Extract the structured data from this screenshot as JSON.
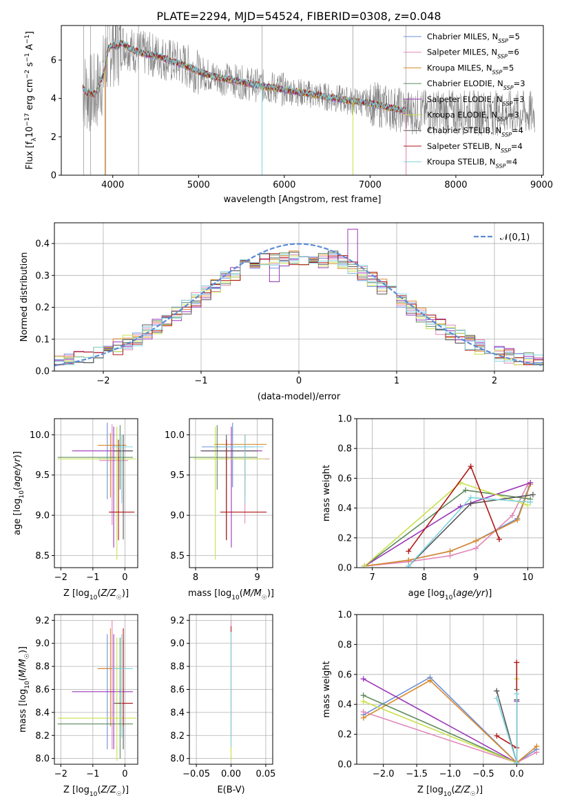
{
  "figure_title": "PLATE=2294, MJD=54524, FIBERID=0308, z=0.048",
  "models": [
    {
      "name": "Chabrier MILES",
      "nssp": "5",
      "color": "#6a8fd8"
    },
    {
      "name": "Salpeter MILES",
      "nssp": "6",
      "color": "#e087b8"
    },
    {
      "name": "Kroupa MILES",
      "nssp": "5",
      "color": "#d8892a"
    },
    {
      "name": "Chabrier ELODIE",
      "nssp": "3",
      "color": "#5c8a5c"
    },
    {
      "name": "Salpeter ELODIE",
      "nssp": "3",
      "color": "#9b35b8"
    },
    {
      "name": "Kroupa ELODIE",
      "nssp": "3",
      "color": "#c8e04a"
    },
    {
      "name": "Chabrier STELIB",
      "nssp": "4",
      "color": "#555555"
    },
    {
      "name": "Salpeter STELIB",
      "nssp": "4",
      "color": "#b01515"
    },
    {
      "name": "Kroupa STELIB",
      "nssp": "4",
      "color": "#7fd3e0"
    }
  ],
  "chart_data": [
    {
      "id": "spectrum",
      "type": "line",
      "xlabel": "wavelength [Angstrom, rest frame]",
      "ylabel": "Flux [f_λ 10^-17 erg cm^-2 s^-1 A^-1]",
      "xlim": [
        3400,
        9020
      ],
      "ylim": [
        0,
        7.8
      ],
      "xticks": [
        4000,
        5000,
        6000,
        7000,
        8000,
        9000
      ],
      "yticks": [
        0,
        2,
        4,
        6
      ],
      "legend": "top-right",
      "model_curve": {
        "x": [
          3650,
          3700,
          3800,
          3900,
          3950,
          4000,
          4050,
          4100,
          4200,
          4300,
          4400,
          4500,
          4600,
          4700,
          4800,
          4900,
          5000,
          5200,
          5400,
          5600,
          5800,
          6000,
          6200,
          6400,
          6600,
          6800,
          7000,
          7200,
          7400
        ],
        "y": [
          4.5,
          4.3,
          4.2,
          5.4,
          6.6,
          6.8,
          6.7,
          6.9,
          6.6,
          6.4,
          6.3,
          6.25,
          6.1,
          5.9,
          5.8,
          5.6,
          5.4,
          5.1,
          4.95,
          4.75,
          4.6,
          4.45,
          4.3,
          4.15,
          4.0,
          3.85,
          3.75,
          3.55,
          3.35
        ]
      }
    },
    {
      "id": "residuals",
      "type": "bar",
      "xlabel": "(data-model)/error",
      "ylabel": "Normed distribution",
      "xlim": [
        -2.5,
        2.5
      ],
      "ylim": [
        0,
        0.465
      ],
      "xticks": [
        -2,
        -1,
        0,
        1,
        2
      ],
      "yticks": [
        0.0,
        0.1,
        0.2,
        0.3,
        0.4
      ],
      "legend": "top-right",
      "gaussian_label": "𝒩(0,1)",
      "bin_width": 0.1
    },
    {
      "id": "age_vs_Z",
      "type": "scatter",
      "xlabel": "Z [log10(Z/Z☉)]",
      "ylabel": "age [log10(age/yr)]",
      "xlim": [
        -2.2,
        0.4
      ],
      "ylim": [
        8.35,
        10.2
      ],
      "xticks": [
        -2,
        -1,
        0
      ],
      "yticks": [
        8.5,
        9.0,
        9.5,
        10.0
      ],
      "points": [
        {
          "m": 0,
          "x": -0.55,
          "xerr": [
            0.3,
            0.3
          ],
          "y": 9.7,
          "yerr": [
            0.5,
            0.45
          ]
        },
        {
          "m": 1,
          "x": -0.4,
          "xerr": [
            0.4,
            0.5
          ],
          "y": 9.68,
          "yerr": [
            0.8,
            0.45
          ]
        },
        {
          "m": 2,
          "x": -0.45,
          "xerr": [
            0.4,
            0.5
          ],
          "y": 9.87,
          "yerr": [
            0.65,
            0.15
          ]
        },
        {
          "m": 3,
          "x": -0.15,
          "xerr": [
            1.95,
            0.4
          ],
          "y": 9.72,
          "yerr": [
            0.4,
            0.4
          ]
        },
        {
          "m": 4,
          "x": -0.35,
          "xerr": [
            1.3,
            0.6
          ],
          "y": 9.8,
          "yerr": [
            1.2,
            0.3
          ]
        },
        {
          "m": 5,
          "x": -0.25,
          "xerr": [
            1.85,
            0.6
          ],
          "y": 9.7,
          "yerr": [
            1.25,
            0.4
          ]
        },
        {
          "m": 6,
          "x": -0.05,
          "xerr": [
            0.3,
            0.3
          ],
          "y": 9.8,
          "yerr": [
            1.1,
            0.2
          ]
        },
        {
          "m": 7,
          "x": -0.2,
          "xerr": [
            0.3,
            0.5
          ],
          "y": 9.04,
          "yerr": [
            0.35,
            0.9
          ]
        },
        {
          "m": 8,
          "x": -0.1,
          "xerr": [
            0.3,
            0.35
          ],
          "y": 9.85,
          "yerr": [
            0.7,
            0.15
          ]
        }
      ]
    },
    {
      "id": "age_vs_mass",
      "type": "scatter",
      "xlabel": "mass [log10(M/M☉)]",
      "ylabel": "",
      "xlim": [
        7.9,
        9.25
      ],
      "ylim": [
        8.35,
        10.2
      ],
      "xticks": [
        8,
        9
      ],
      "yticks": [
        8.5,
        9.0,
        9.5,
        10.0
      ],
      "points": [
        {
          "m": 0,
          "x": 8.6,
          "xerr": [
            0.5,
            0.35
          ],
          "y": 9.85,
          "yerr": [
            0.5,
            0.3
          ]
        },
        {
          "m": 1,
          "x": 8.8,
          "xerr": [
            0.5,
            0.4
          ],
          "y": 9.7,
          "yerr": [
            0.8,
            0.3
          ]
        },
        {
          "m": 2,
          "x": 8.8,
          "xerr": [
            0.5,
            0.35
          ],
          "y": 9.88,
          "yerr": [
            0.65,
            0.12
          ]
        },
        {
          "m": 3,
          "x": 8.35,
          "xerr": [
            0.5,
            0.65
          ],
          "y": 9.72,
          "yerr": [
            0.4,
            0.4
          ]
        },
        {
          "m": 4,
          "x": 8.58,
          "xerr": [
            0.5,
            0.5
          ],
          "y": 9.8,
          "yerr": [
            1.2,
            0.3
          ]
        },
        {
          "m": 5,
          "x": 8.32,
          "xerr": [
            0.35,
            0.8
          ],
          "y": 9.7,
          "yerr": [
            1.25,
            0.4
          ]
        },
        {
          "m": 6,
          "x": 8.5,
          "xerr": [
            0.4,
            0.5
          ],
          "y": 9.8,
          "yerr": [
            1.1,
            0.2
          ]
        },
        {
          "m": 7,
          "x": 8.5,
          "xerr": [
            0.1,
            0.65
          ],
          "y": 9.04,
          "yerr": [
            0.35,
            0.9
          ]
        },
        {
          "m": 8,
          "x": 8.8,
          "xerr": [
            0.4,
            0.3
          ],
          "y": 9.85,
          "yerr": [
            0.7,
            0.15
          ]
        }
      ]
    },
    {
      "id": "weight_vs_age",
      "type": "line",
      "xlabel": "age [log10(age/yr)]",
      "ylabel": "mass weight",
      "xlim": [
        6.7,
        10.3
      ],
      "ylim": [
        0,
        1.0
      ],
      "xticks": [
        7,
        8,
        9,
        10
      ],
      "yticks": [
        0.0,
        0.2,
        0.4,
        0.6,
        0.8,
        1.0
      ],
      "series": [
        {
          "m": 0,
          "x": [
            6.85,
            7.7,
            8.5,
            9.0,
            9.8,
            10.05
          ],
          "y": [
            0.01,
            0.05,
            0.11,
            0.18,
            0.33,
            0.57
          ]
        },
        {
          "m": 1,
          "x": [
            6.85,
            7.7,
            8.5,
            9.0,
            9.7,
            10.0
          ],
          "y": [
            0.01,
            0.04,
            0.08,
            0.13,
            0.35,
            0.56
          ]
        },
        {
          "m": 2,
          "x": [
            6.85,
            7.7,
            8.5,
            9.0,
            9.8,
            10.05
          ],
          "y": [
            0.01,
            0.05,
            0.11,
            0.18,
            0.32,
            0.56
          ]
        },
        {
          "m": 3,
          "x": [
            6.85,
            8.8,
            10.05
          ],
          "y": [
            0.01,
            0.52,
            0.46
          ]
        },
        {
          "m": 4,
          "x": [
            6.85,
            8.7,
            10.05
          ],
          "y": [
            0.01,
            0.41,
            0.57
          ]
        },
        {
          "m": 5,
          "x": [
            6.85,
            8.7,
            10.0
          ],
          "y": [
            0.01,
            0.57,
            0.42
          ]
        },
        {
          "m": 6,
          "x": [
            7.7,
            8.9,
            10.1
          ],
          "y": [
            0.01,
            0.43,
            0.49
          ]
        },
        {
          "m": 7,
          "x": [
            7.7,
            8.9,
            9.45
          ],
          "y": [
            0.11,
            0.68,
            0.19
          ]
        },
        {
          "m": 8,
          "x": [
            7.7,
            8.9,
            10.05
          ],
          "y": [
            0.01,
            0.47,
            0.44
          ]
        }
      ]
    },
    {
      "id": "mass_vs_Z",
      "type": "scatter",
      "xlabel": "Z [log10(Z/Z☉)]",
      "ylabel": "mass [log10(M/M☉)]",
      "xlim": [
        -2.2,
        0.4
      ],
      "ylim": [
        7.95,
        9.25
      ],
      "xticks": [
        -2,
        -1,
        0
      ],
      "yticks": [
        8.0,
        8.2,
        8.4,
        8.6,
        8.8,
        9.0,
        9.2
      ],
      "points": [
        {
          "m": 0,
          "x": -0.55,
          "xerr": [
            0.3,
            0.3
          ],
          "y": 8.78,
          "yerr": [
            0.7,
            0.3
          ]
        },
        {
          "m": 1,
          "x": -0.4,
          "xerr": [
            0.4,
            0.5
          ],
          "y": 8.78,
          "yerr": [
            0.7,
            0.42
          ]
        },
        {
          "m": 2,
          "x": -0.45,
          "xerr": [
            0.4,
            0.5
          ],
          "y": 8.78,
          "yerr": [
            0.5,
            0.35
          ]
        },
        {
          "m": 3,
          "x": -0.15,
          "xerr": [
            1.95,
            0.4
          ],
          "y": 8.3,
          "yerr": [
            0.3,
            0.75
          ]
        },
        {
          "m": 4,
          "x": -0.35,
          "xerr": [
            1.3,
            0.6
          ],
          "y": 8.58,
          "yerr": [
            0.5,
            0.5
          ]
        },
        {
          "m": 5,
          "x": -0.25,
          "xerr": [
            1.85,
            0.6
          ],
          "y": 8.35,
          "yerr": [
            0.37,
            0.7
          ]
        },
        {
          "m": 6,
          "x": -0.05,
          "xerr": [
            0.3,
            0.3
          ],
          "y": 8.48,
          "yerr": [
            0.4,
            0.55
          ]
        },
        {
          "m": 7,
          "x": -0.05,
          "xerr": [
            0.15,
            0.3
          ],
          "y": 8.48,
          "yerr": [
            0.2,
            0.65
          ]
        },
        {
          "m": 8,
          "x": -0.1,
          "xerr": [
            0.3,
            0.35
          ],
          "y": 8.78,
          "yerr": [
            0.6,
            0.3
          ]
        }
      ]
    },
    {
      "id": "mass_vs_ebv",
      "type": "scatter",
      "xlabel": "E(B-V)",
      "ylabel": "",
      "xlim": [
        -0.06,
        0.06
      ],
      "ylim": [
        7.95,
        9.25
      ],
      "xticks": [
        -0.05,
        0.0,
        0.05
      ],
      "yticks": [
        8.0,
        8.2,
        8.4,
        8.6,
        8.8,
        9.0,
        9.2
      ],
      "points": [
        {
          "m": 1,
          "x": 0.0,
          "y": 8.6,
          "yerr": [
            0.6,
            0.6
          ]
        },
        {
          "m": 5,
          "x": 0.0,
          "y": 8.4,
          "yerr": [
            0.42,
            0.6
          ]
        },
        {
          "m": 7,
          "x": 0.0,
          "y": 8.6,
          "yerr": [
            0.4,
            0.55
          ]
        },
        {
          "m": 8,
          "x": 0.0,
          "y": 8.6,
          "yerr": [
            0.5,
            0.5
          ]
        }
      ]
    },
    {
      "id": "weight_vs_Z",
      "type": "line",
      "xlabel": "Z [log10(Z/Z☉)]",
      "ylabel": "mass weight",
      "xlim": [
        -2.4,
        0.4
      ],
      "ylim": [
        0,
        1.0
      ],
      "xticks": [
        -2.0,
        -1.5,
        -1.0,
        -0.5,
        0.0
      ],
      "yticks": [
        0.0,
        0.2,
        0.4,
        0.6,
        0.8,
        1.0
      ],
      "series": [
        {
          "m": 0,
          "x": [
            -2.3,
            -1.3,
            0.0,
            0.3
          ],
          "y": [
            0.33,
            0.58,
            0.01,
            0.1
          ]
        },
        {
          "m": 1,
          "x": [
            -2.3,
            0.0,
            0.3
          ],
          "y": [
            0.35,
            0.01,
            0.08
          ]
        },
        {
          "m": 2,
          "x": [
            -2.3,
            -1.3,
            0.0,
            0.3
          ],
          "y": [
            0.31,
            0.56,
            0.01,
            0.12
          ]
        },
        {
          "m": 3,
          "x": [
            -2.3,
            0.0,
            0.0
          ],
          "y": [
            0.46,
            0.01,
            0.5
          ]
        },
        {
          "m": 4,
          "x": [
            -2.3,
            0.0,
            0.0
          ],
          "y": [
            0.57,
            0.01,
            0.42
          ]
        },
        {
          "m": 5,
          "x": [
            -2.3,
            0.0,
            0.0
          ],
          "y": [
            0.42,
            0.01,
            0.57
          ]
        },
        {
          "m": 6,
          "x": [
            -0.3,
            0.0,
            0.0
          ],
          "y": [
            0.49,
            0.01,
            0.43
          ]
        },
        {
          "m": 7,
          "x": [
            -0.3,
            0.0,
            0.0
          ],
          "y": [
            0.19,
            0.11,
            0.68
          ]
        },
        {
          "m": 8,
          "x": [
            -0.3,
            0.0,
            0.0
          ],
          "y": [
            0.44,
            0.01,
            0.47
          ]
        }
      ]
    }
  ]
}
